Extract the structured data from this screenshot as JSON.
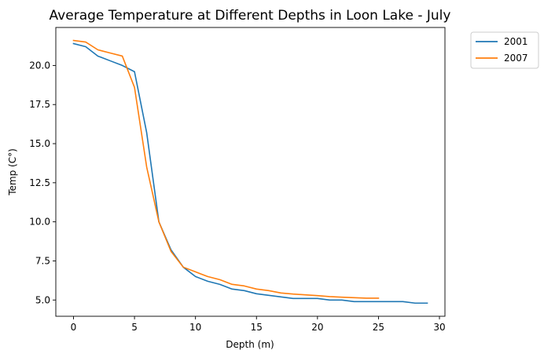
{
  "chart_data": {
    "type": "line",
    "title": "Average Temperature at Different Depths in Loon Lake - July",
    "xlabel": "Depth (m)",
    "ylabel": "Temp (C°)",
    "xlim": [
      -1.45,
      30.45
    ],
    "ylim": [
      3.96,
      22.43
    ],
    "xticks": [
      0,
      5,
      10,
      15,
      20,
      25,
      30
    ],
    "xtick_labels": [
      "0",
      "5",
      "10",
      "15",
      "20",
      "25",
      "30"
    ],
    "yticks": [
      5.0,
      7.5,
      10.0,
      12.5,
      15.0,
      17.5,
      20.0
    ],
    "ytick_labels": [
      "5.0",
      "7.5",
      "10.0",
      "12.5",
      "15.0",
      "17.5",
      "20.0"
    ],
    "grid": false,
    "legend_position": "outside top-right",
    "series": [
      {
        "name": "2001",
        "color": "#1f77b4",
        "x": [
          0,
          1,
          2,
          3,
          4,
          5,
          6,
          7,
          8,
          9,
          10,
          11,
          12,
          13,
          14,
          15,
          16,
          17,
          18,
          19,
          20,
          21,
          22,
          23,
          24,
          25,
          26,
          27,
          28,
          29
        ],
        "y": [
          21.4,
          21.2,
          20.6,
          20.3,
          20.0,
          19.6,
          15.7,
          10.0,
          8.2,
          7.1,
          6.5,
          6.2,
          6.0,
          5.7,
          5.6,
          5.4,
          5.3,
          5.2,
          5.1,
          5.1,
          5.1,
          5.0,
          5.0,
          4.9,
          4.9,
          4.9,
          4.9,
          4.9,
          4.8,
          4.8
        ]
      },
      {
        "name": "2007",
        "color": "#ff7f0e",
        "x": [
          0,
          1,
          2,
          3,
          4,
          5,
          6,
          7,
          8,
          9,
          10,
          11,
          12,
          13,
          14,
          15,
          16,
          17,
          18,
          19,
          20,
          21,
          22,
          23,
          24,
          25
        ],
        "y": [
          21.6,
          21.5,
          21.0,
          20.8,
          20.6,
          18.6,
          13.5,
          10.0,
          8.1,
          7.1,
          6.8,
          6.5,
          6.3,
          6.0,
          5.9,
          5.7,
          5.6,
          5.45,
          5.38,
          5.33,
          5.28,
          5.22,
          5.18,
          5.15,
          5.12,
          5.12
        ]
      }
    ]
  }
}
